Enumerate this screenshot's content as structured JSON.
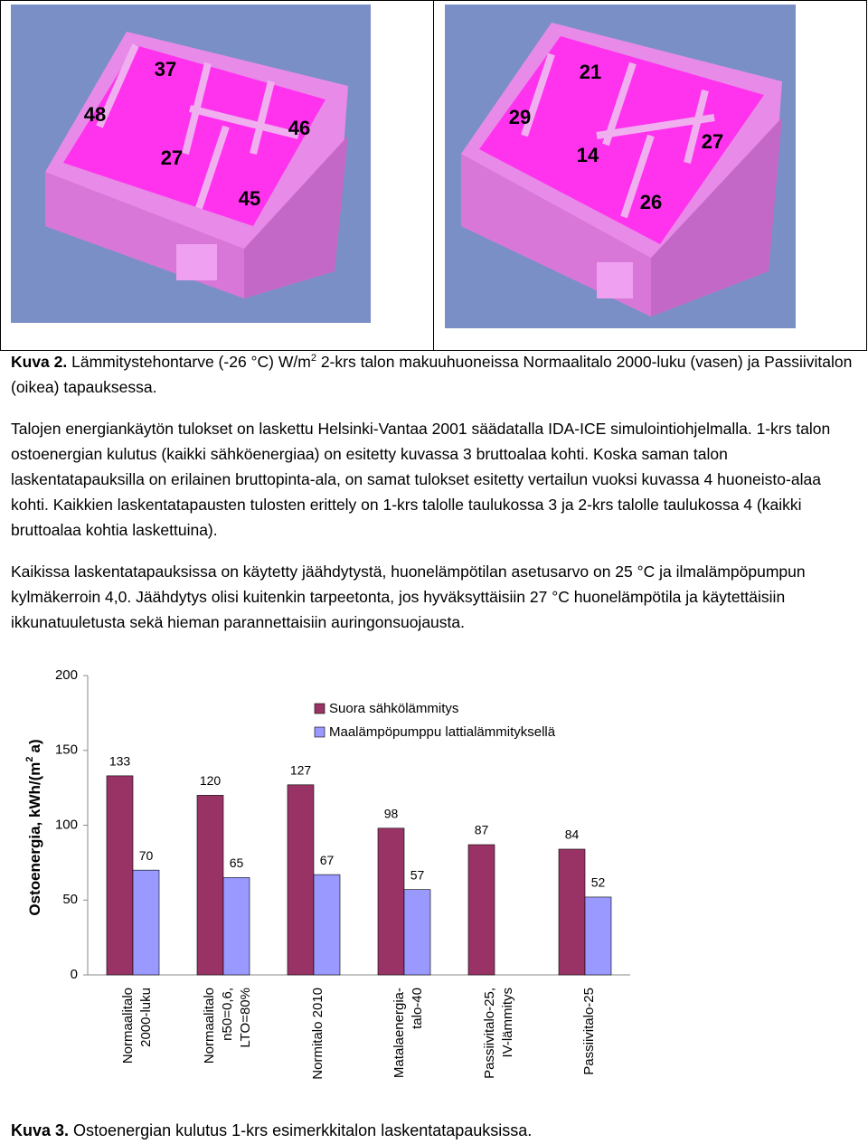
{
  "figure2": {
    "left_labels": [
      "37",
      "48",
      "27",
      "46",
      "45"
    ],
    "right_labels": [
      "21",
      "29",
      "14",
      "27",
      "26"
    ],
    "caption": {
      "label": "Kuva 2.",
      "text": "Lämmitystehontarve (-26 °C) W/m",
      "sup": "2",
      "rest": "2-krs talon makuuhuoneissa Normaalitalo 2000-luku (vasen) ja Passiivitalon (oikea) tapauksessa."
    }
  },
  "paragraphs": [
    "Talojen energiankäytön tulokset on laskettu Helsinki-Vantaa 2001 säädatalla IDA-ICE simulointiohjelmalla. 1-krs talon ostoenergian kulutus (kaikki sähköenergiaa) on esitetty kuvassa 3 bruttoalaa kohti. Koska saman talon laskentatapauksilla on erilainen bruttopinta-ala, on samat tulokset esitetty vertailun vuoksi kuvassa 4 huoneisto-alaa kohti. Kaikkien laskentatapausten tulosten erittely on 1-krs talolle taulukossa 3 ja 2-krs talolle taulukossa 4 (kaikki bruttoalaa kohtia laskettuina).",
    "Kaikissa laskentatapauksissa on käytetty jäähdytystä, huonelämpötilan asetusarvo on 25 °C ja ilmalämpöpumpun kylmäkerroin 4,0. Jäähdytys olisi kuitenkin tarpeetonta, jos hyväksyttäisiin 27 °C huonelämpötila ja käytettäisiin ikkunatuuletusta sekä hieman parannettaisiin auringonsuojausta."
  ],
  "chart_data": {
    "type": "bar",
    "y_label": {
      "text": "Ostoenergia, kWh/(m",
      "sup": "2",
      "rest": "a)"
    },
    "categories": [
      [
        "Normaalitalo",
        "2000-luku"
      ],
      [
        "Normaalitalo",
        "n50=0,6,",
        "LTO=80%"
      ],
      [
        "Normitalo 2010"
      ],
      [
        "Matalaenergia-",
        "talo-40"
      ],
      [
        "Passiivitalo-25,",
        "IV-lämmitys"
      ],
      [
        "Passiivitalo-25"
      ]
    ],
    "series": [
      {
        "name": "Suora sähkölämmitys",
        "color": "#993366",
        "values": [
          133,
          120,
          127,
          98,
          87,
          84
        ]
      },
      {
        "name": "Maalämpöpumppu lattialämmityksellä",
        "color": "#9999ff",
        "values": [
          70,
          65,
          67,
          57,
          null,
          52
        ]
      }
    ],
    "ylim": [
      0,
      200
    ],
    "yticks": [
      0,
      50,
      100,
      150,
      200
    ],
    "grid": false
  },
  "figure3_caption": {
    "label": "Kuva 3.",
    "text": "Ostoenergian kulutus 1-krs esimerkkitalon laskentatapauksissa."
  }
}
